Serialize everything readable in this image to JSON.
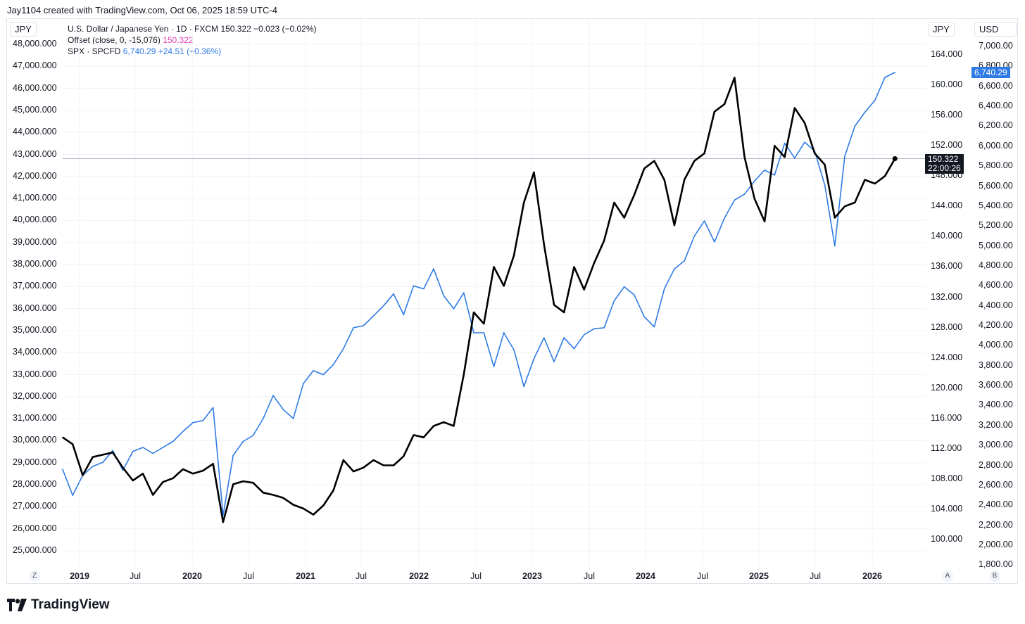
{
  "header": {
    "created_by": "Jay1104 created with TradingView.com, Oct 06, 2025 18:59 UTC-4"
  },
  "axis_badges": {
    "left": "JPY",
    "mid": "JPY",
    "right": "USD"
  },
  "legend": {
    "row1_title": "U.S. Dollar / Japanese Yen · 1D · FXCM",
    "row1_values": "150.322  −0.023 (−0.02%)",
    "row2_title": "Offset (close, 0, -15,076)",
    "row2_value": "150.322",
    "row3_title": "SPX · SPCFD",
    "row3_values": "6,740.29  +24.51 (+0.36%)"
  },
  "price_labels": {
    "usdjpy_price": "150.322",
    "usdjpy_countdown": "22:00:26",
    "spx_price": "6,740.29"
  },
  "x_axis": {
    "labels": [
      "2019",
      "Jul",
      "2020",
      "Jul",
      "2021",
      "Jul",
      "2022",
      "Jul",
      "2023",
      "Jul",
      "2024",
      "Jul",
      "2025",
      "Jul",
      "2026"
    ],
    "bold": [
      "2019",
      "2020",
      "2021",
      "2022",
      "2023",
      "2024",
      "2025",
      "2026"
    ],
    "left_button": "Z",
    "right_buttons": [
      "A",
      "B"
    ]
  },
  "footer": {
    "brand": "TradingView"
  },
  "colors": {
    "usdjpy": "#000000",
    "spx": "#2f7be5",
    "price_line": "#b2b5be",
    "legend_pink": "#e040b4"
  },
  "chart_data": {
    "type": "line",
    "title": "U.S. Dollar / Japanese Yen · 1D · FXCM",
    "x_range": [
      "2018-11",
      "2026-01"
    ],
    "axes": {
      "left": {
        "label": "JPY",
        "ticks": [
          "48,000.000",
          "47,000.000",
          "46,000.000",
          "45,000.000",
          "44,000.000",
          "43,000.000",
          "42,000.000",
          "41,000.000",
          "40,000.000",
          "39,000.000",
          "38,000.000",
          "37,000.000",
          "36,000.000",
          "35,000.000",
          "34,000.000",
          "33,000.000",
          "32,000.000",
          "31,000.000",
          "30,000.000",
          "29,000.000",
          "28,000.000",
          "27,000.000",
          "26,000.000",
          "25,000.000"
        ]
      },
      "usdjpy": {
        "label": "JPY",
        "ticks": [
          "164.000",
          "160.000",
          "156.000",
          "152.000",
          "148.000",
          "144.000",
          "140.000",
          "136.000",
          "132.000",
          "128.000",
          "124.000",
          "120.000",
          "116.000",
          "112.000",
          "108.000",
          "104.000",
          "100.000"
        ],
        "ylim": [
          96,
          166
        ]
      },
      "spx": {
        "label": "USD",
        "ticks": [
          "7,000.00",
          "6,800.00",
          "6,600.00",
          "6,400.00",
          "6,200.00",
          "6,000.00",
          "5,800.00",
          "5,600.00",
          "5,400.00",
          "5,200.00",
          "5,000.00",
          "4,800.00",
          "4,600.00",
          "4,400.00",
          "4,200.00",
          "4,000.00",
          "3,800.00",
          "3,600.00",
          "3,400.00",
          "3,200.00",
          "3,000.00",
          "2,800.00",
          "2,600.00",
          "2,400.00",
          "2,200.00",
          "2,000.00",
          "1,800.00"
        ],
        "ylim": [
          1800,
          7050
        ]
      }
    },
    "grid": true,
    "series": [
      {
        "name": "U.S. Dollar / Japanese Yen",
        "axis": "usdjpy",
        "x": [
          "2018-11",
          "2018-12",
          "2019-01",
          "2019-02",
          "2019-03",
          "2019-04",
          "2019-05",
          "2019-06",
          "2019-07",
          "2019-08",
          "2019-09",
          "2019-10",
          "2019-11",
          "2019-12",
          "2020-01",
          "2020-02",
          "2020-03",
          "2020-04",
          "2020-05",
          "2020-06",
          "2020-07",
          "2020-08",
          "2020-09",
          "2020-10",
          "2020-11",
          "2020-12",
          "2021-01",
          "2021-02",
          "2021-03",
          "2021-04",
          "2021-05",
          "2021-06",
          "2021-07",
          "2021-08",
          "2021-09",
          "2021-10",
          "2021-11",
          "2021-12",
          "2022-01",
          "2022-02",
          "2022-03",
          "2022-04",
          "2022-05",
          "2022-06",
          "2022-07",
          "2022-08",
          "2022-09",
          "2022-10",
          "2022-11",
          "2022-12",
          "2023-01",
          "2023-02",
          "2023-03",
          "2023-04",
          "2023-05",
          "2023-06",
          "2023-07",
          "2023-08",
          "2023-09",
          "2023-10",
          "2023-11",
          "2023-12",
          "2024-01",
          "2024-02",
          "2024-03",
          "2024-04",
          "2024-05",
          "2024-06",
          "2024-07",
          "2024-08",
          "2024-09",
          "2024-10",
          "2024-11",
          "2024-12",
          "2025-01",
          "2025-02",
          "2025-03",
          "2025-04",
          "2025-05",
          "2025-06",
          "2025-07",
          "2025-08",
          "2025-09",
          "2025-10"
        ],
        "values": [
          113.5,
          112.6,
          108.5,
          110.9,
          111.2,
          111.5,
          109.5,
          107.8,
          108.7,
          105.9,
          107.6,
          108.1,
          109.3,
          108.7,
          109.1,
          110.0,
          102.3,
          107.3,
          107.7,
          107.5,
          106.2,
          105.9,
          105.5,
          104.6,
          104.1,
          103.3,
          104.5,
          106.5,
          110.5,
          109.0,
          109.5,
          110.5,
          109.8,
          109.8,
          111.0,
          113.8,
          113.5,
          115.0,
          115.5,
          115.0,
          121.8,
          130.0,
          128.5,
          136.0,
          133.5,
          137.5,
          144.5,
          148.5,
          139.0,
          131.0,
          130.0,
          136.0,
          133.0,
          136.5,
          139.5,
          144.5,
          142.5,
          145.5,
          149.0,
          150.0,
          147.5,
          141.5,
          147.5,
          150.0,
          151.0,
          156.5,
          157.5,
          161.0,
          150.5,
          145.0,
          142.0,
          152.0,
          150.5,
          157.0,
          155.0,
          151.0,
          149.5,
          142.5,
          144.0,
          144.5,
          147.5,
          147.0,
          148.0,
          150.3
        ]
      },
      {
        "name": "SPX · SPCFD",
        "axis": "spx",
        "x": [
          "2018-11",
          "2018-12",
          "2019-01",
          "2019-02",
          "2019-03",
          "2019-04",
          "2019-05",
          "2019-06",
          "2019-07",
          "2019-08",
          "2019-09",
          "2019-10",
          "2019-11",
          "2019-12",
          "2020-01",
          "2020-02",
          "2020-03",
          "2020-04",
          "2020-05",
          "2020-06",
          "2020-07",
          "2020-08",
          "2020-09",
          "2020-10",
          "2020-11",
          "2020-12",
          "2021-01",
          "2021-02",
          "2021-03",
          "2021-04",
          "2021-05",
          "2021-06",
          "2021-07",
          "2021-08",
          "2021-09",
          "2021-10",
          "2021-11",
          "2021-12",
          "2022-01",
          "2022-02",
          "2022-03",
          "2022-04",
          "2022-05",
          "2022-06",
          "2022-07",
          "2022-08",
          "2022-09",
          "2022-10",
          "2022-11",
          "2022-12",
          "2023-01",
          "2023-02",
          "2023-03",
          "2023-04",
          "2023-05",
          "2023-06",
          "2023-07",
          "2023-08",
          "2023-09",
          "2023-10",
          "2023-11",
          "2023-12",
          "2024-01",
          "2024-02",
          "2024-03",
          "2024-04",
          "2024-05",
          "2024-06",
          "2024-07",
          "2024-08",
          "2024-09",
          "2024-10",
          "2024-11",
          "2024-12",
          "2025-01",
          "2025-02",
          "2025-03",
          "2025-04",
          "2025-05",
          "2025-06",
          "2025-07",
          "2025-08",
          "2025-09",
          "2025-10"
        ],
        "values": [
          2760,
          2500,
          2700,
          2790,
          2830,
          2950,
          2750,
          2940,
          2980,
          2920,
          2980,
          3040,
          3140,
          3230,
          3250,
          3380,
          2300,
          2900,
          3040,
          3100,
          3270,
          3500,
          3360,
          3270,
          3620,
          3750,
          3710,
          3810,
          3970,
          4180,
          4200,
          4300,
          4400,
          4520,
          4310,
          4600,
          4570,
          4770,
          4500,
          4370,
          4530,
          4130,
          4130,
          3790,
          4130,
          3960,
          3590,
          3870,
          4080,
          3840,
          4080,
          3970,
          4110,
          4170,
          4180,
          4450,
          4590,
          4510,
          4290,
          4190,
          4570,
          4770,
          4850,
          5100,
          5250,
          5040,
          5280,
          5460,
          5520,
          5650,
          5760,
          5710,
          6030,
          5880,
          6040,
          5950,
          5610,
          5000,
          5900,
          6200,
          6340,
          6460,
          6690,
          6740
        ]
      }
    ]
  }
}
